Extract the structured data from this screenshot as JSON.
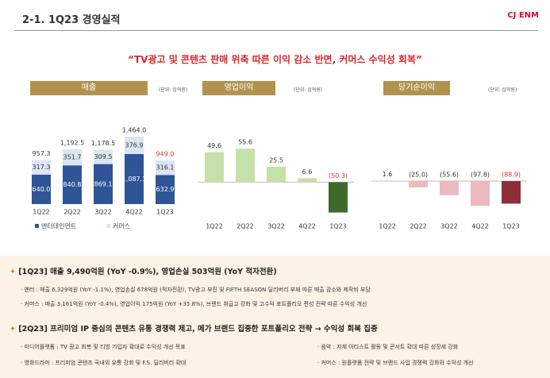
{
  "header": {
    "title": "2-1. 1Q23 경영실적",
    "logo": "CJ ENM"
  },
  "headline": "“TV광고 및 콘텐츠 판매 위축 따른 이익 감소 반면, 커머스 수익성 회복”",
  "chart_data": [
    {
      "type": "stacked_bar",
      "title": "매출",
      "unit": "(단위: 십억원)",
      "categories": [
        "1Q22",
        "2Q22",
        "3Q22",
        "4Q22",
        "1Q23"
      ],
      "series": [
        {
          "name": "엔터테인먼트",
          "color": "#2f5597",
          "values": [
            640.0,
            840.8,
            869.1,
            1087.1,
            632.9
          ],
          "value_labels": [
            "640.0",
            "840.8",
            "869.1",
            "1,087.1",
            "632.9"
          ]
        },
        {
          "name": "커머스",
          "color": "#dbe5f3",
          "values": [
            317.3,
            351.7,
            309.5,
            376.9,
            316.1
          ]
        }
      ],
      "totals": [
        957.3,
        1192.5,
        1178.5,
        1464.0,
        949.0
      ],
      "total_labels": [
        "957.3",
        "1,192.5",
        "1,178.5",
        "1,464.0",
        "949.0"
      ],
      "label_colors": [
        "#333333",
        "#333333",
        "#333333",
        "#333333",
        "#e0302a"
      ],
      "ylim": [
        0,
        1500
      ]
    },
    {
      "type": "bar",
      "title": "영업이익",
      "unit": "(단위: 십억원)",
      "categories": [
        "1Q22",
        "2Q22",
        "3Q22",
        "4Q22",
        "1Q23"
      ],
      "values": [
        49.6,
        55.6,
        25.5,
        6.6,
        -50.3
      ],
      "value_labels": [
        "49.6",
        "55.6",
        "25.5",
        "6.6",
        "(50.3)"
      ],
      "colors": [
        "#c6e0a9",
        "#c6e0a9",
        "#c6e0a9",
        "#c6e0a9",
        "#3e6a2b"
      ],
      "label_colors": [
        "#333333",
        "#333333",
        "#333333",
        "#333333",
        "#e0302a"
      ],
      "ylim": [
        -60,
        65
      ]
    },
    {
      "type": "bar",
      "title": "당기순이익",
      "unit": "(단위: 십억원)",
      "categories": [
        "1Q22",
        "2Q22",
        "3Q22",
        "4Q22",
        "1Q23"
      ],
      "values": [
        1.6,
        -25.0,
        -55.6,
        -97.8,
        -88.9
      ],
      "value_labels": [
        "1.6",
        "(25.0)",
        "(55.6)",
        "(97.8)",
        "(88.9)"
      ],
      "colors": [
        "#ebbac0",
        "#ebbac0",
        "#ebbac0",
        "#ebbac0",
        "#8e2f38"
      ],
      "label_colors": [
        "#333333",
        "#333333",
        "#333333",
        "#333333",
        "#e0302a"
      ],
      "ylim": [
        -100,
        150
      ]
    }
  ],
  "summary": {
    "q1_heading": "[1Q23] 매출 9,490억원 (YoY -0.9%), 영업손실 503억원 (YoY 적자전환)",
    "q1_items": [
      "· 엔터 : 매출 6,329억원 (YoY -1.1%), 영업손실 678억원 (적자전환), TV광고 부진 및 FIFTH SEASON 딜리버리 부재 따른 매출 감소와 제작비 부담",
      "· 커머스 : 매출 3,161억원 (YoY -0.4%), 영업이익 175억원 (YoY +35.8%), 브랜드 취급고 강화 및 고수익 포트폴리오 편성 전략 따른 수익성 개선"
    ],
    "q2_heading": "[2Q23] 프리미엄 IP 중심의 콘텐츠 유통 경쟁력 제고, 메가 브랜드 집중한 포트폴리오 전략 → 수익성 회복 집중",
    "q2_items": [
      "· 미디어플랫폼 : TV 광고 회복 및 티빙 가입자 확대로 수익성 개선 목표",
      "· 음악 : 자체 아티스트 활동 및 콘서트 확대 따른 성장세 강화",
      "· 영화드라마 : 프리미엄 콘텐츠 국내외 유통 강화 및 F.S. 딜리버리 확대",
      "· 커머스 : 원플랫폼 전략 및 브랜드 사업 경쟁력 강화와 수익성 개선"
    ]
  }
}
